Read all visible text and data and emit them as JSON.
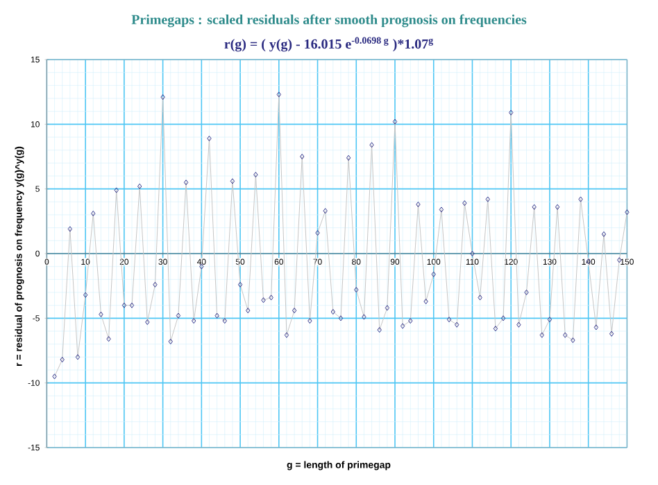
{
  "chart_data": {
    "type": "line",
    "title": "Primegaps : scaled residuals after smooth prognosis on frequencies",
    "subtitle": "r(g) = ( y(g) - 16.015 e$^{-0.0698 g}$ )*1.07$^{g}$",
    "xlabel": "g = length of primegap",
    "ylabel": "r = residual of prognosis on frequency  y(g)^y(g)",
    "x": [
      2,
      4,
      6,
      8,
      10,
      12,
      14,
      16,
      18,
      20,
      22,
      24,
      26,
      28,
      30,
      32,
      34,
      36,
      38,
      40,
      42,
      44,
      46,
      48,
      50,
      52,
      54,
      56,
      58,
      60,
      62,
      64,
      66,
      68,
      70,
      72,
      74,
      76,
      78,
      80,
      82,
      84,
      86,
      88,
      90,
      92,
      94,
      96,
      98,
      100,
      102,
      104,
      106,
      108,
      110,
      112,
      114,
      116,
      118,
      120,
      122,
      124,
      126,
      128,
      130,
      132,
      134,
      136,
      138,
      140,
      142,
      144,
      146,
      148,
      150
    ],
    "series": [
      {
        "color": "#33338a",
        "values": [
          -9.5,
          -8.2,
          1.9,
          -8.0,
          -3.2,
          3.1,
          -4.7,
          -6.6,
          4.9,
          -4.0,
          -4.0,
          5.2,
          -5.3,
          -2.4,
          12.1,
          -6.8,
          -4.8,
          5.5,
          -5.2,
          -1.0,
          8.9,
          -4.8,
          -5.2,
          5.6,
          -2.4,
          -4.4,
          6.1,
          -3.6,
          -3.4,
          12.3,
          -6.3,
          -4.4,
          7.5,
          -5.2,
          1.6,
          3.3,
          -4.5,
          -5.0,
          7.4,
          -2.8,
          -4.9,
          8.4,
          -5.9,
          -4.2,
          10.2,
          -5.6,
          -5.2,
          3.8,
          -3.7,
          -1.6,
          3.4,
          -5.1,
          -5.5,
          3.9,
          0.0,
          -3.4,
          4.2,
          -5.8,
          -5.0,
          10.9,
          -5.5,
          -3.0,
          3.6,
          -6.3,
          -5.1,
          3.6,
          -6.3,
          -6.7,
          4.2,
          -0.6,
          -5.7,
          1.5,
          -6.2,
          -0.5,
          3.2
        ]
      }
    ],
    "xlim": [
      0,
      150
    ],
    "xticks": [
      0,
      {
        "value": 2,
        "label": null
      },
      {
        "value": 4,
        "label": null
      },
      {
        "value": 6,
        "label": null
      },
      {
        "value": 8,
        "label": null
      },
      10,
      {
        "value": 12,
        "label": null
      },
      {
        "value": 14,
        "label": null
      },
      {
        "value": 16,
        "label": null
      },
      {
        "value": 18,
        "label": null
      },
      20,
      {
        "value": 22,
        "label": null
      },
      {
        "value": 24,
        "label": null
      },
      {
        "value": 26,
        "label": null
      },
      {
        "value": 28,
        "label": null
      },
      30,
      {
        "value": 32,
        "label": null
      },
      {
        "value": 34,
        "label": null
      },
      {
        "value": 36,
        "label": null
      },
      {
        "value": 38,
        "label": null
      },
      40,
      {
        "value": 42,
        "label": null
      },
      {
        "value": 44,
        "label": null
      },
      {
        "value": 46,
        "label": null
      },
      {
        "value": 48,
        "label": null
      },
      50,
      {
        "value": 52,
        "label": null
      },
      {
        "value": 54,
        "label": null
      },
      {
        "value": 56,
        "label": null
      },
      {
        "value": 58,
        "label": null
      },
      60,
      {
        "value": 62,
        "label": null
      },
      {
        "value": 64,
        "label": null
      },
      {
        "value": 66,
        "label": null
      },
      {
        "value": 68,
        "label": null
      },
      70,
      {
        "value": 72,
        "label": null
      },
      {
        "value": 74,
        "label": null
      },
      {
        "value": 76,
        "label": null
      },
      {
        "value": 78,
        "label": null
      },
      80,
      {
        "value": 82,
        "label": null
      },
      {
        "value": 84,
        "label": null
      },
      {
        "value": 86,
        "label": null
      },
      {
        "value": 88,
        "label": null
      },
      90,
      {
        "value": 92,
        "label": null
      },
      {
        "value": 94,
        "label": null
      },
      {
        "value": 96,
        "label": null
      },
      {
        "value": 98,
        "label": null
      },
      100,
      {
        "value": 102,
        "label": null
      },
      {
        "value": 104,
        "label": null
      },
      {
        "value": 106,
        "label": null
      },
      {
        "value": 108,
        "label": null
      },
      110,
      {
        "value": 112,
        "label": null
      },
      {
        "value": 114,
        "label": null
      },
      {
        "value": 116,
        "label": null
      },
      {
        "value": 118,
        "label": null
      },
      120,
      {
        "value": 122,
        "label": null
      },
      {
        "value": 124,
        "label": null
      },
      {
        "value": 126,
        "label": null
      },
      {
        "value": 128,
        "label": null
      },
      130,
      {
        "value": 132,
        "label": null
      },
      {
        "value": 134,
        "label": null
      },
      {
        "value": 136,
        "label": null
      },
      {
        "value": 138,
        "label": null
      },
      140,
      {
        "value": 142,
        "label": null
      },
      {
        "value": 144,
        "label": null
      },
      {
        "value": 146,
        "label": null
      },
      {
        "value": 148,
        "label": null
      },
      150
    ],
    "ylim": [
      -15,
      15
    ],
    "yticks": [
      -15,
      {
        "value": -14,
        "label": null
      },
      {
        "value": -13,
        "label": null
      },
      {
        "value": -12,
        "label": null
      },
      {
        "value": -11,
        "label": null
      },
      -10,
      {
        "value": -9,
        "label": null
      },
      {
        "value": -8,
        "label": null
      },
      {
        "value": -7,
        "label": null
      },
      {
        "value": -6,
        "label": null
      },
      -5,
      {
        "value": -4,
        "label": null
      },
      {
        "value": -3,
        "label": null
      },
      {
        "value": -2,
        "label": null
      },
      {
        "value": -1,
        "label": null
      },
      0,
      {
        "value": 1,
        "label": null
      },
      {
        "value": 2,
        "label": null
      },
      {
        "value": 3,
        "label": null
      },
      {
        "value": 4,
        "label": null
      },
      5,
      {
        "value": 6,
        "label": null
      },
      {
        "value": 7,
        "label": null
      },
      {
        "value": 8,
        "label": null
      },
      {
        "value": 9,
        "label": null
      },
      10,
      {
        "value": 11,
        "label": null
      },
      {
        "value": 12,
        "label": null
      },
      {
        "value": 13,
        "label": null
      },
      {
        "value": 14,
        "label": null
      },
      15
    ],
    "grid": true,
    "marker": "diamond",
    "line_style": "solid"
  }
}
